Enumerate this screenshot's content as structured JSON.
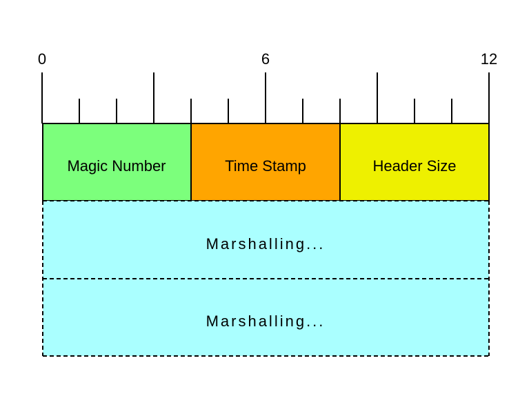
{
  "ruler": {
    "start_label": "0",
    "mid_label": "6",
    "end_label": "12"
  },
  "fields": [
    {
      "label": "Magic Number",
      "color": "#7cff7c"
    },
    {
      "label": "Time Stamp",
      "color": "#ffa500"
    },
    {
      "label": "Header Size",
      "color": "#eef000"
    }
  ],
  "marshalling": [
    {
      "label": "Marshalling...",
      "color": "#aaffff"
    },
    {
      "label": "Marshalling...",
      "color": "#aaffff"
    }
  ]
}
